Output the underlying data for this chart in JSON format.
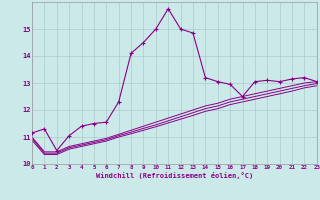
{
  "xlabel": "Windchill (Refroidissement éolien,°C)",
  "xlim": [
    0,
    23
  ],
  "ylim": [
    10,
    16
  ],
  "yticks": [
    10,
    11,
    12,
    13,
    14,
    15
  ],
  "xticks": [
    0,
    1,
    2,
    3,
    4,
    5,
    6,
    7,
    8,
    9,
    10,
    11,
    12,
    13,
    14,
    15,
    16,
    17,
    18,
    19,
    20,
    21,
    22,
    23
  ],
  "background_color": "#cce9e9",
  "grid_color": "#b0d8d8",
  "line_color": "#880088",
  "curve1_x": [
    0,
    1,
    2,
    3,
    4,
    5,
    6,
    7,
    8,
    9,
    10,
    11,
    12,
    13,
    14,
    15,
    16,
    17,
    18,
    19,
    20,
    21,
    22,
    23
  ],
  "curve1_y": [
    11.15,
    11.3,
    10.5,
    11.05,
    11.4,
    11.5,
    11.55,
    12.3,
    14.1,
    14.5,
    15.0,
    15.75,
    15.0,
    14.85,
    13.2,
    13.05,
    12.95,
    12.5,
    13.05,
    13.1,
    13.05,
    13.15,
    13.2,
    13.05
  ],
  "curve2_x": [
    0,
    1,
    2,
    3,
    4,
    5,
    6,
    7,
    8,
    9,
    10,
    11,
    12,
    13,
    14,
    15,
    16,
    17,
    18,
    19,
    20,
    21,
    22,
    23
  ],
  "curve2_y": [
    11.0,
    10.45,
    10.45,
    10.65,
    10.75,
    10.85,
    10.95,
    11.1,
    11.25,
    11.4,
    11.55,
    11.7,
    11.85,
    12.0,
    12.15,
    12.25,
    12.4,
    12.5,
    12.6,
    12.7,
    12.8,
    12.9,
    13.0,
    13.05
  ],
  "curve3_x": [
    0,
    1,
    2,
    3,
    4,
    5,
    6,
    7,
    8,
    9,
    10,
    11,
    12,
    13,
    14,
    15,
    16,
    17,
    18,
    19,
    20,
    21,
    22,
    23
  ],
  "curve3_y": [
    10.95,
    10.4,
    10.4,
    10.6,
    10.7,
    10.8,
    10.9,
    11.05,
    11.18,
    11.32,
    11.45,
    11.6,
    11.75,
    11.9,
    12.05,
    12.15,
    12.3,
    12.4,
    12.5,
    12.6,
    12.7,
    12.8,
    12.9,
    12.98
  ],
  "curve4_x": [
    0,
    1,
    2,
    3,
    4,
    5,
    6,
    7,
    8,
    9,
    10,
    11,
    12,
    13,
    14,
    15,
    16,
    17,
    18,
    19,
    20,
    21,
    22,
    23
  ],
  "curve4_y": [
    10.88,
    10.35,
    10.35,
    10.55,
    10.65,
    10.75,
    10.85,
    11.0,
    11.12,
    11.25,
    11.38,
    11.52,
    11.66,
    11.8,
    11.95,
    12.05,
    12.2,
    12.3,
    12.4,
    12.5,
    12.6,
    12.7,
    12.82,
    12.9
  ]
}
